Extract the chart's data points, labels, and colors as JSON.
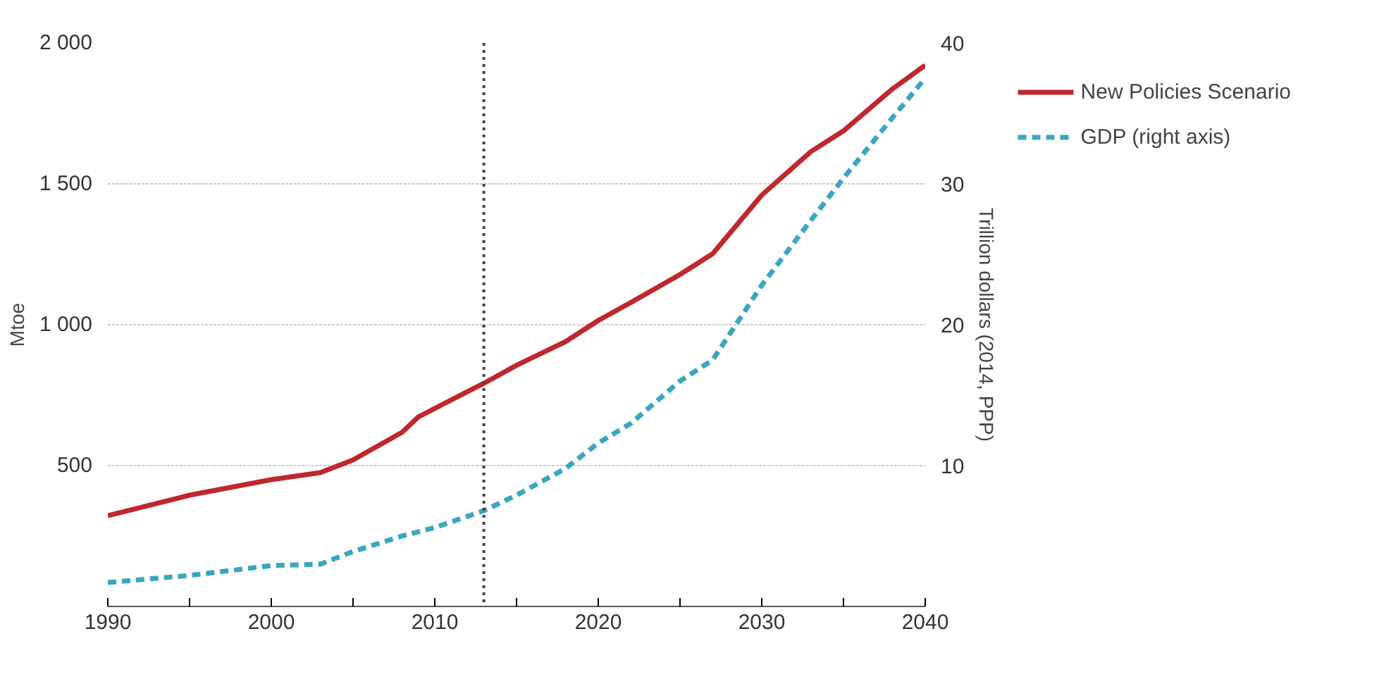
{
  "chart_data": {
    "type": "line",
    "ylabel": "Mtoe",
    "y2label": "Trillion dollars (2014, PPP)",
    "xlim": [
      1990,
      2040
    ],
    "xticks": [
      1990,
      {
        "value": 1995,
        "label": null
      },
      2000,
      {
        "value": 2005,
        "label": null
      },
      2010,
      {
        "value": 2015,
        "label": null
      },
      2020,
      {
        "value": 2025,
        "label": null
      },
      2030,
      {
        "value": 2035,
        "label": null
      },
      2040
    ],
    "ylim": [
      0,
      2000
    ],
    "yticks": [
      {
        "value": 500,
        "label": "500"
      },
      {
        "value": 1000,
        "label": "1 000"
      },
      {
        "value": 1500,
        "label": "1 500"
      },
      {
        "value": 2000,
        "label": "2 000"
      }
    ],
    "y2lim": [
      0,
      40
    ],
    "y2ticks": [
      10,
      20,
      30,
      40
    ],
    "grid": "y",
    "legend": "top right",
    "ref_lines": [
      {
        "axis": "x",
        "value": 2013,
        "line_style": "dotted",
        "color": "#444444"
      }
    ],
    "series": [
      {
        "name": "New Policies Scenario",
        "color": "#c0272d",
        "line_style": "solid",
        "x": [
          1990,
          1995,
          2000,
          2003,
          2005,
          2008,
          2009,
          2011,
          2013,
          2015,
          2018,
          2020,
          2022,
          2025,
          2027,
          2030,
          2033,
          2035,
          2038,
          2040
        ],
        "values": [
          322,
          395,
          450,
          475,
          520,
          618,
          673,
          733,
          792,
          856,
          940,
          1015,
          1079,
          1178,
          1252,
          1460,
          1614,
          1688,
          1837,
          1921
        ]
      },
      {
        "name": "GDP (right axis)",
        "color": "#3aa6c0",
        "line_style": "dashed",
        "axis": "y2",
        "x": [
          1990,
          1995,
          2000,
          2003,
          2005,
          2008,
          2010,
          2013,
          2015,
          2018,
          2020,
          2022,
          2025,
          2027,
          2030,
          2033,
          2035,
          2038,
          2040
        ],
        "values": [
          1.7,
          2.2,
          2.9,
          3.0,
          3.9,
          5.0,
          5.6,
          6.8,
          7.9,
          9.8,
          11.6,
          13.0,
          16.0,
          17.5,
          22.8,
          27.4,
          30.4,
          34.7,
          37.5
        ]
      }
    ]
  }
}
